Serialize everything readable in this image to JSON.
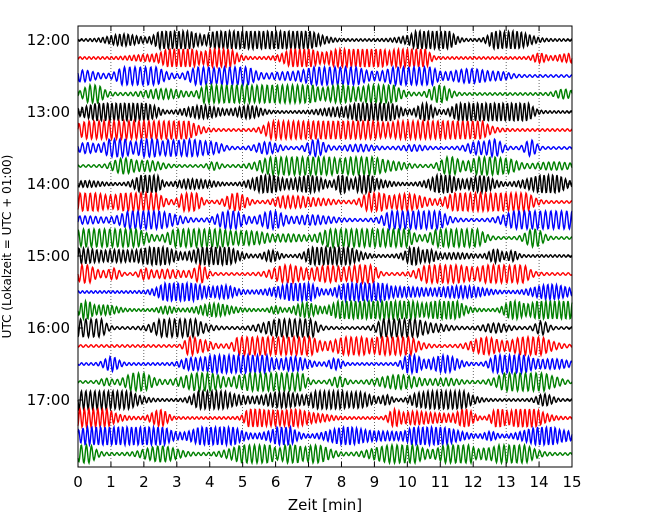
{
  "chart_data": {
    "type": "line",
    "title": "",
    "xlabel": "Zeit  [min]",
    "ylabel": "UTC (Lokalzeit = UTC + 01:00)",
    "xlim": [
      0,
      15
    ],
    "x_ticks": [
      "0",
      "1",
      "2",
      "3",
      "4",
      "5",
      "6",
      "7",
      "8",
      "9",
      "10",
      "11",
      "12",
      "13",
      "14",
      "15"
    ],
    "grid": "vertical-dotted",
    "start_time": "12:00",
    "trace_interval_minutes": 15,
    "y_ticks": [
      {
        "label": "12:00",
        "row": 0
      },
      {
        "label": "13:00",
        "row": 4
      },
      {
        "label": "14:00",
        "row": 8
      },
      {
        "label": "15:00",
        "row": 12
      },
      {
        "label": "16:00",
        "row": 16
      },
      {
        "label": "17:00",
        "row": 20
      }
    ],
    "trace_colors": [
      "#000000",
      "#ff0000",
      "#0000ff",
      "#008000"
    ],
    "trace_count": 24
  }
}
